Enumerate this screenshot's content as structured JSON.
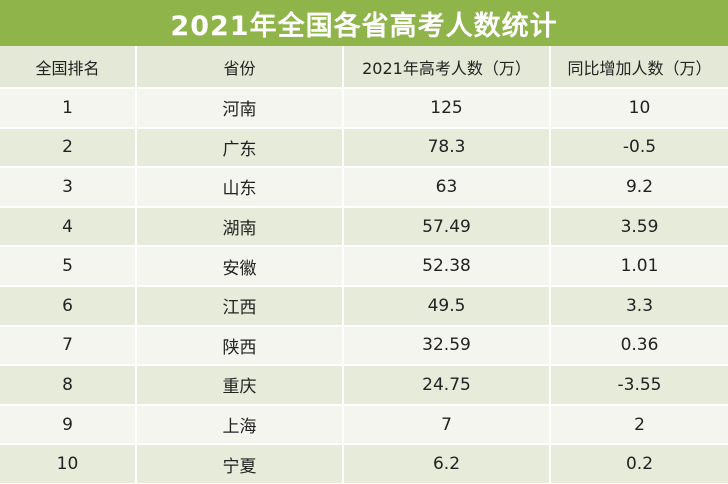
{
  "title": "2021年全国各省高考人数统计",
  "colors": {
    "title_bg": "#8fb44a",
    "header_bg": "#e4e8d6",
    "row_light": "#f3f5ee",
    "row_dark": "#e6ebda"
  },
  "table": {
    "headers": [
      "全国排名",
      "省份",
      "2021年高考人数（万）",
      "同比增加人数（万）"
    ],
    "rows": [
      [
        "1",
        "河南",
        "125",
        "10"
      ],
      [
        "2",
        "广东",
        "78.3",
        "-0.5"
      ],
      [
        "3",
        "山东",
        "63",
        "9.2"
      ],
      [
        "4",
        "湖南",
        "57.49",
        "3.59"
      ],
      [
        "5",
        "安徽",
        "52.38",
        "1.01"
      ],
      [
        "6",
        "江西",
        "49.5",
        "3.3"
      ],
      [
        "7",
        "陕西",
        "32.59",
        "0.36"
      ],
      [
        "8",
        "重庆",
        "24.75",
        "-3.55"
      ],
      [
        "9",
        "上海",
        "7",
        "2"
      ],
      [
        "10",
        "宁夏",
        "6.2",
        "0.2"
      ]
    ]
  }
}
